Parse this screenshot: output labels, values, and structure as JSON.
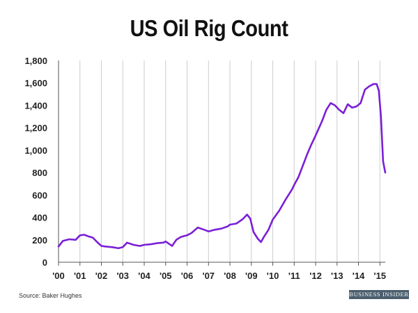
{
  "chart_data": {
    "type": "line",
    "title": "US Oil Rig Count",
    "xlabel": "",
    "ylabel": "",
    "ylim": [
      0,
      1800
    ],
    "y_ticks": [
      0,
      200,
      400,
      600,
      800,
      1000,
      1200,
      1400,
      1600,
      1800
    ],
    "y_tick_labels": [
      "0",
      "200",
      "400",
      "600",
      "800",
      "1,000",
      "1,200",
      "1,400",
      "1,600",
      "1,800"
    ],
    "x_ticks": [
      2000,
      2001,
      2002,
      2003,
      2004,
      2005,
      2006,
      2007,
      2008,
      2009,
      2010,
      2011,
      2012,
      2013,
      2014,
      2015
    ],
    "x_tick_labels": [
      "'00",
      "'01",
      "'02",
      "'03",
      "'04",
      "'05",
      "'06",
      "'07",
      "'08",
      "'09",
      "'10",
      "'11",
      "'12",
      "'13",
      "'14",
      "'15"
    ],
    "grid": "vertical",
    "line_color": "#7a1fd6",
    "series": [
      {
        "x": [
          2000.0,
          2000.2,
          2000.5,
          2000.8,
          2001.0,
          2001.2,
          2001.4,
          2001.6,
          2001.8,
          2002.0,
          2002.2,
          2002.5,
          2002.8,
          2003.0,
          2003.2,
          2003.5,
          2003.8,
          2004.0,
          2004.3,
          2004.6,
          2004.9,
          2005.0,
          2005.3,
          2005.5,
          2005.7,
          2006.0,
          2006.2,
          2006.5,
          2006.8,
          2007.0,
          2007.3,
          2007.6,
          2007.9,
          2008.0,
          2008.3,
          2008.6,
          2008.8,
          2008.95,
          2009.1,
          2009.3,
          2009.45,
          2009.6,
          2009.8,
          2010.0,
          2010.3,
          2010.6,
          2010.9,
          2011.0,
          2011.2,
          2011.4,
          2011.6,
          2011.8,
          2012.0,
          2012.3,
          2012.5,
          2012.7,
          2012.9,
          2013.1,
          2013.3,
          2013.5,
          2013.7,
          2013.9,
          2014.1,
          2014.3,
          2014.5,
          2014.7,
          2014.85,
          2014.95,
          2015.05,
          2015.15,
          2015.25
        ],
        "y": [
          140,
          190,
          205,
          200,
          240,
          245,
          230,
          220,
          180,
          145,
          140,
          135,
          125,
          135,
          175,
          155,
          145,
          155,
          160,
          170,
          175,
          185,
          145,
          200,
          225,
          240,
          260,
          310,
          290,
          275,
          290,
          300,
          320,
          335,
          345,
          385,
          425,
          390,
          270,
          210,
          180,
          230,
          290,
          380,
          460,
          560,
          650,
          690,
          760,
          860,
          960,
          1050,
          1130,
          1260,
          1360,
          1420,
          1400,
          1360,
          1330,
          1410,
          1380,
          1390,
          1420,
          1540,
          1570,
          1590,
          1590,
          1530,
          1300,
          900,
          800
        ]
      }
    ]
  },
  "source_text": "Source: Baker Hughes",
  "brand_text": "BUSINESS INSIDER"
}
